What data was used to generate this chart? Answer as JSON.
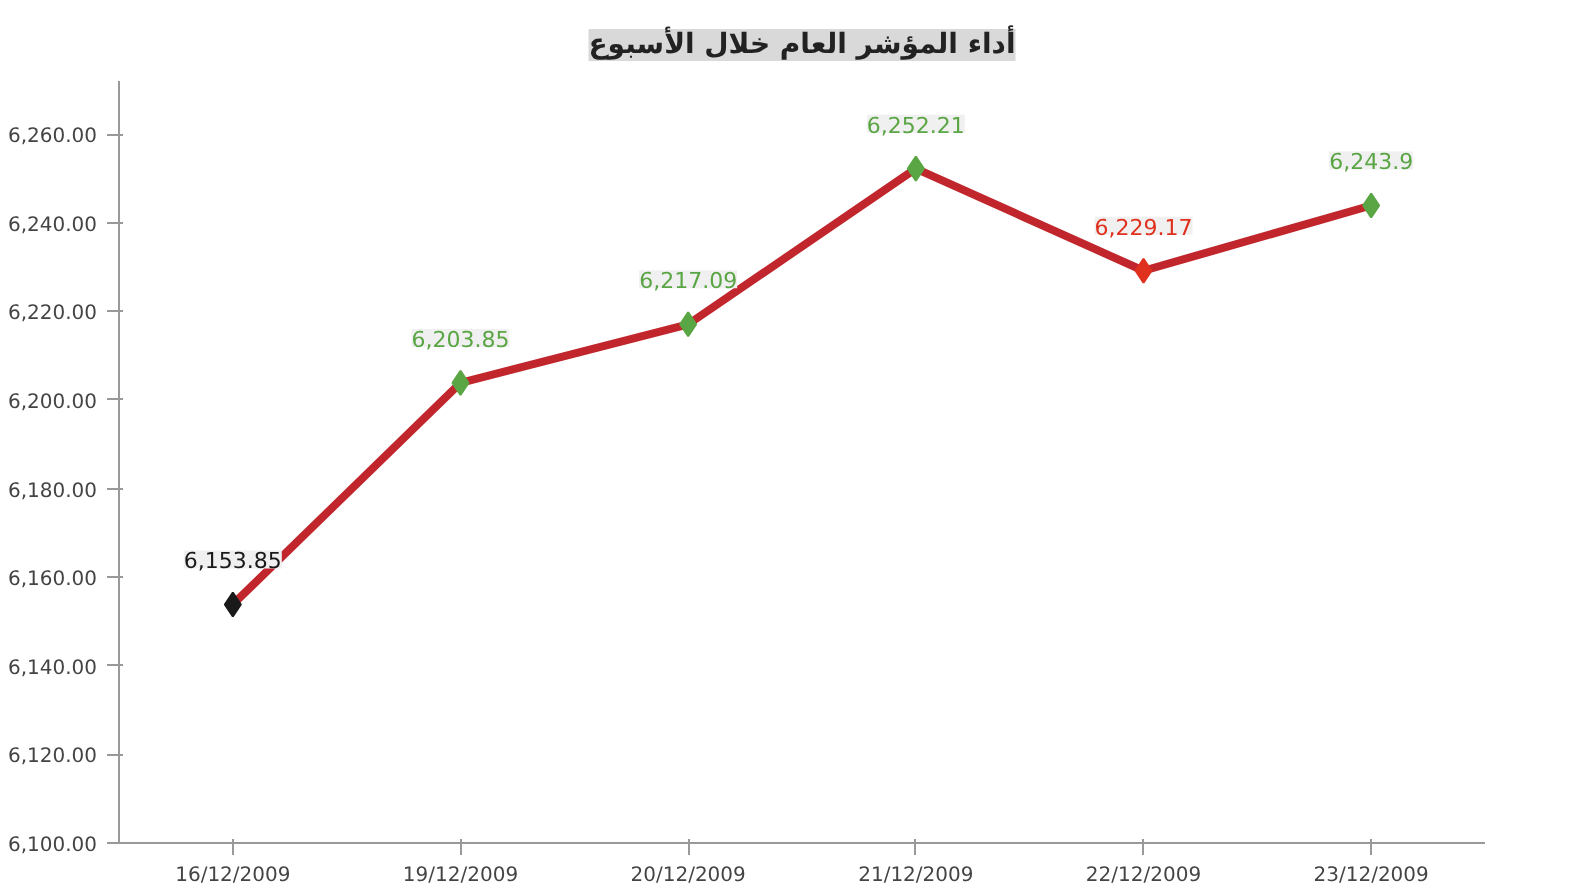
{
  "chart_data": {
    "type": "line",
    "title": "أداء المؤشر العام خلال الأسبوع",
    "categories": [
      "16/12/2009",
      "19/12/2009",
      "20/12/2009",
      "21/12/2009",
      "22/12/2009",
      "23/12/2009"
    ],
    "series": [
      {
        "color": "#c0262c",
        "colors": [
          "#1a1a1a",
          "#5aa544",
          "#5aa544",
          "#5aa544",
          "#e0301e",
          "#5aa544"
        ],
        "values": [
          6153.85,
          6203.85,
          6217.09,
          6252.21,
          6229.17,
          6243.9
        ],
        "value_labels": [
          "6,153.85",
          "6,203.85",
          "6,217.09",
          "6,252.21",
          "6,229.17",
          "6,243.9"
        ]
      }
    ],
    "ylim": [
      6100,
      6272
    ],
    "yticks": [
      {
        "value": 6100,
        "label": "6,100.00"
      },
      {
        "value": 6120,
        "label": "6,120.00"
      },
      {
        "value": 6140,
        "label": "6,140.00"
      },
      {
        "value": 6160,
        "label": "6,160.00"
      },
      {
        "value": 6180,
        "label": "6,180.00"
      },
      {
        "value": 6200,
        "label": "6,200.00"
      },
      {
        "value": 6220,
        "label": "6,220.00"
      },
      {
        "value": 6240,
        "label": "6,240.00"
      },
      {
        "value": 6260,
        "label": "6,260.00"
      }
    ],
    "marker": "diamond",
    "grid": false
  }
}
